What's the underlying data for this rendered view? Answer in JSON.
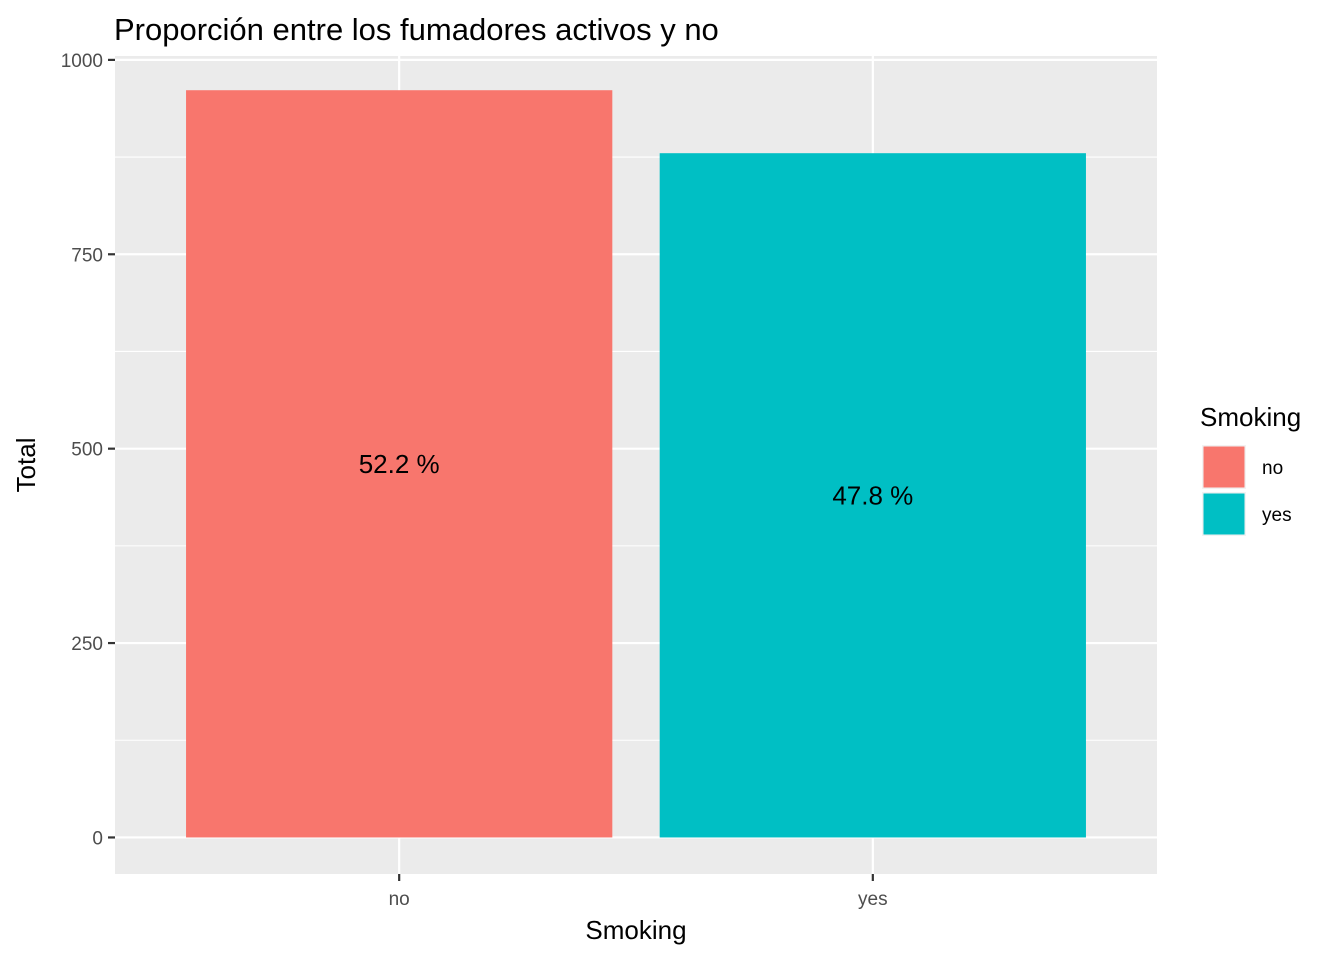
{
  "chart_data": {
    "type": "bar",
    "title": "Proporción entre los fumadores activos y no",
    "xlabel": "Smoking",
    "ylabel": "Total",
    "categories": [
      "no",
      "yes"
    ],
    "values": [
      961,
      880
    ],
    "data_labels": [
      "52.2 %",
      "47.8 %"
    ],
    "ylim": [
      -47,
      1005
    ],
    "y_ticks": [
      0,
      250,
      500,
      750,
      1000
    ],
    "y_tick_labels": [
      "0",
      "250",
      "500",
      "750",
      "1000"
    ],
    "colors": [
      "#F8766D",
      "#00BFC4"
    ],
    "panel_background": "#EBEBEB",
    "grid": true,
    "legend": {
      "title": "Smoking",
      "position": "right",
      "entries": [
        "no",
        "yes"
      ]
    }
  }
}
